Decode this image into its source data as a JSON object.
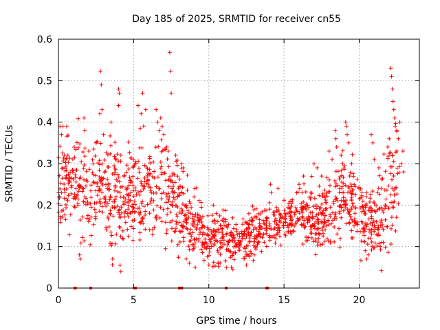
{
  "chart_data": {
    "type": "scatter",
    "title": "Day 185 of 2025, SRMTID for receiver cn55",
    "xlabel": "GPS time / hours",
    "ylabel": "SRMTID / TECUs",
    "xlim": [
      0,
      24
    ],
    "ylim": [
      0,
      0.6
    ],
    "xticks": [
      0,
      5,
      10,
      15,
      20
    ],
    "yticks": [
      0,
      0.1,
      0.2,
      0.3,
      0.4,
      0.5,
      0.6
    ],
    "xtick_labels": [
      "0",
      "5",
      "10",
      "15",
      "20"
    ],
    "ytick_labels": [
      "0",
      "0.1",
      "0.2",
      "0.3",
      "0.4",
      "0.5",
      "0.6"
    ],
    "grid": true,
    "marker": "+",
    "series_color": "#ff0000",
    "trend": [
      [
        0.0,
        0.26,
        0.055
      ],
      [
        1.0,
        0.25,
        0.055
      ],
      [
        2.0,
        0.24,
        0.055
      ],
      [
        3.0,
        0.24,
        0.06
      ],
      [
        4.0,
        0.21,
        0.06
      ],
      [
        5.0,
        0.23,
        0.06
      ],
      [
        6.0,
        0.25,
        0.06
      ],
      [
        7.0,
        0.24,
        0.065
      ],
      [
        8.0,
        0.2,
        0.05
      ],
      [
        9.0,
        0.15,
        0.035
      ],
      [
        10.0,
        0.12,
        0.03
      ],
      [
        11.0,
        0.12,
        0.03
      ],
      [
        12.0,
        0.11,
        0.025
      ],
      [
        13.0,
        0.14,
        0.03
      ],
      [
        14.0,
        0.15,
        0.025
      ],
      [
        15.0,
        0.16,
        0.025
      ],
      [
        16.0,
        0.19,
        0.03
      ],
      [
        17.0,
        0.16,
        0.035
      ],
      [
        18.0,
        0.18,
        0.045
      ],
      [
        19.0,
        0.23,
        0.05
      ],
      [
        20.0,
        0.18,
        0.045
      ],
      [
        21.0,
        0.15,
        0.05
      ],
      [
        22.0,
        0.22,
        0.07
      ],
      [
        22.7,
        0.25,
        0.07
      ]
    ],
    "outliers": [
      [
        7.4,
        0.568
      ],
      [
        7.45,
        0.523
      ],
      [
        7.5,
        0.47
      ],
      [
        2.8,
        0.523
      ],
      [
        2.85,
        0.49
      ],
      [
        2.9,
        0.43
      ],
      [
        2.75,
        0.42
      ],
      [
        4.0,
        0.48
      ],
      [
        4.05,
        0.47
      ],
      [
        4.0,
        0.44
      ],
      [
        5.6,
        0.47
      ],
      [
        5.3,
        0.44
      ],
      [
        5.5,
        0.42
      ],
      [
        5.8,
        0.43
      ],
      [
        6.8,
        0.41
      ],
      [
        6.9,
        0.39
      ],
      [
        6.6,
        0.4
      ],
      [
        6.7,
        0.38
      ],
      [
        7.0,
        0.37
      ],
      [
        6.5,
        0.43
      ],
      [
        0.1,
        0.39
      ],
      [
        0.3,
        0.39
      ],
      [
        0.2,
        0.37
      ],
      [
        0.4,
        0.32
      ],
      [
        0.5,
        0.31
      ],
      [
        1.7,
        0.41
      ],
      [
        1.75,
        0.38
      ],
      [
        3.5,
        0.4
      ],
      [
        2.5,
        0.35
      ],
      [
        3.0,
        0.37
      ],
      [
        7.2,
        0.34
      ],
      [
        7.3,
        0.33
      ],
      [
        7.8,
        0.32
      ],
      [
        8.2,
        0.3
      ],
      [
        8.3,
        0.29
      ],
      [
        1.4,
        0.08
      ],
      [
        1.45,
        0.07
      ],
      [
        3.6,
        0.07
      ],
      [
        4.1,
        0.055
      ],
      [
        4.15,
        0.04
      ],
      [
        8.5,
        0.07
      ],
      [
        8.7,
        0.06
      ],
      [
        9.1,
        0.05
      ],
      [
        11.5,
        0.05
      ],
      [
        11.6,
        0.045
      ],
      [
        10.3,
        0.2
      ],
      [
        10.5,
        0.18
      ],
      [
        11.0,
        0.16
      ],
      [
        11.2,
        0.15
      ],
      [
        14.1,
        0.25
      ],
      [
        14.15,
        0.23
      ],
      [
        14.6,
        0.24
      ],
      [
        16.0,
        0.25
      ],
      [
        16.3,
        0.27
      ],
      [
        17.0,
        0.3
      ],
      [
        17.2,
        0.29
      ],
      [
        17.5,
        0.27
      ],
      [
        18.0,
        0.33
      ],
      [
        18.2,
        0.31
      ],
      [
        18.4,
        0.38
      ],
      [
        18.45,
        0.36
      ],
      [
        18.5,
        0.34
      ],
      [
        18.8,
        0.32
      ],
      [
        18.9,
        0.3
      ],
      [
        19.1,
        0.4
      ],
      [
        19.15,
        0.39
      ],
      [
        19.2,
        0.37
      ],
      [
        19.3,
        0.35
      ],
      [
        19.5,
        0.3
      ],
      [
        20.5,
        0.07
      ],
      [
        20.6,
        0.08
      ],
      [
        20.4,
        0.09
      ],
      [
        21.4,
        0.1
      ],
      [
        21.6,
        0.11
      ],
      [
        20.8,
        0.37
      ],
      [
        20.9,
        0.35
      ],
      [
        21.0,
        0.31
      ],
      [
        21.3,
        0.29
      ],
      [
        22.1,
        0.53
      ],
      [
        22.15,
        0.51
      ],
      [
        22.2,
        0.48
      ],
      [
        22.25,
        0.45
      ],
      [
        22.3,
        0.43
      ],
      [
        22.35,
        0.41
      ],
      [
        22.4,
        0.39
      ],
      [
        22.5,
        0.38
      ],
      [
        22.6,
        0.36
      ],
      [
        22.7,
        0.4
      ],
      [
        21.9,
        0.34
      ],
      [
        22.0,
        0.36
      ],
      [
        22.8,
        0.3
      ],
      [
        22.9,
        0.33
      ],
      [
        22.95,
        0.28
      ]
    ],
    "zero_marks": [
      1.1,
      1.12,
      2.15,
      5.05,
      5.12,
      8.05,
      8.1,
      8.15,
      8.2,
      11.15,
      13.85,
      13.9
    ]
  }
}
